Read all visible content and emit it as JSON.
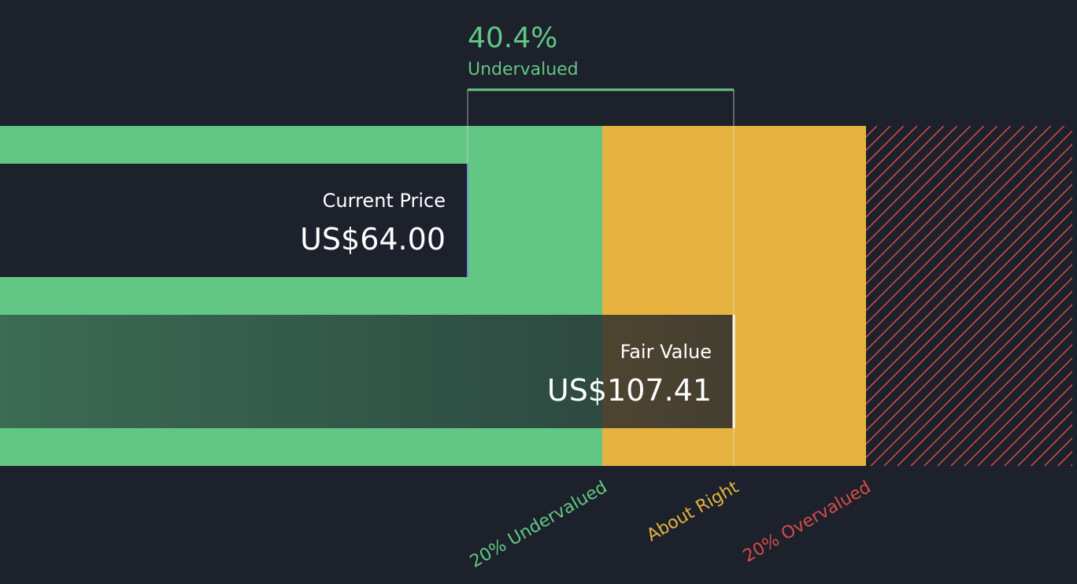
{
  "discount": {
    "value": "40.4%",
    "label": "Undervalued"
  },
  "current_price": {
    "label": "Current Price",
    "value": "US$64.00"
  },
  "fair_value": {
    "label": "Fair Value",
    "value": "US$107.41"
  },
  "zones": [
    "20% Undervalued",
    "About Right",
    "20% Overvalued"
  ]
}
